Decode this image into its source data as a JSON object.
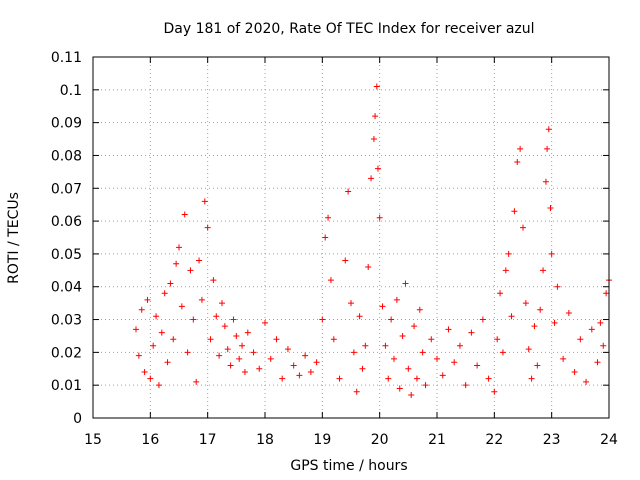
{
  "chart_data": {
    "type": "scatter",
    "title": "Day 181 of 2020, Rate Of TEC Index for receiver azul",
    "xlabel": "GPS time / hours",
    "ylabel": "ROTI / TECUs",
    "xlim": [
      15,
      24
    ],
    "ylim": [
      0,
      0.11
    ],
    "xticks": [
      15,
      16,
      17,
      18,
      19,
      20,
      21,
      22,
      23,
      24
    ],
    "yticks": [
      0,
      0.01,
      0.02,
      0.03,
      0.04,
      0.05,
      0.06,
      0.07,
      0.08,
      0.09,
      0.1,
      0.11
    ],
    "xtick_labels": [
      "15",
      "16",
      "17",
      "18",
      "19",
      "20",
      "21",
      "22",
      "23",
      "24"
    ],
    "ytick_labels": [
      "0",
      "0.01",
      "0.02",
      "0.03",
      "0.04",
      "0.05",
      "0.06",
      "0.07",
      "0.08",
      "0.09",
      "0.1",
      "0.11"
    ],
    "grid": true,
    "marker": "plus",
    "color": "#ff0000",
    "series": [
      {
        "values": [
          [
            15.75,
            0.027
          ],
          [
            15.8,
            0.019
          ],
          [
            15.85,
            0.033
          ],
          [
            15.9,
            0.014
          ],
          [
            15.95,
            0.036
          ],
          [
            16.0,
            0.012
          ],
          [
            16.05,
            0.022
          ],
          [
            16.1,
            0.031
          ],
          [
            16.15,
            0.01
          ],
          [
            16.2,
            0.026
          ],
          [
            16.25,
            0.038
          ],
          [
            16.3,
            0.017
          ],
          [
            16.35,
            0.041
          ],
          [
            16.4,
            0.024
          ],
          [
            16.45,
            0.047
          ],
          [
            16.5,
            0.052
          ],
          [
            16.55,
            0.034
          ],
          [
            16.6,
            0.062
          ],
          [
            16.65,
            0.02
          ],
          [
            16.7,
            0.045
          ],
          [
            16.75,
            0.03
          ],
          [
            16.8,
            0.011
          ],
          [
            16.85,
            0.048
          ],
          [
            16.9,
            0.036
          ],
          [
            16.95,
            0.066
          ],
          [
            17.0,
            0.058
          ],
          [
            17.05,
            0.024
          ],
          [
            17.1,
            0.042
          ],
          [
            17.15,
            0.031
          ],
          [
            17.2,
            0.019
          ],
          [
            17.25,
            0.035
          ],
          [
            17.3,
            0.028
          ],
          [
            17.35,
            0.021
          ],
          [
            17.4,
            0.016
          ],
          [
            17.45,
            0.03
          ],
          [
            17.5,
            0.025
          ],
          [
            17.55,
            0.018
          ],
          [
            17.6,
            0.022
          ],
          [
            17.65,
            0.014
          ],
          [
            17.7,
            0.026
          ],
          [
            17.8,
            0.02
          ],
          [
            17.9,
            0.015
          ],
          [
            18.0,
            0.029
          ],
          [
            18.1,
            0.018
          ],
          [
            18.2,
            0.024
          ],
          [
            18.3,
            0.012
          ],
          [
            18.4,
            0.021
          ],
          [
            18.5,
            0.016
          ],
          [
            18.6,
            0.013
          ],
          [
            18.7,
            0.019
          ],
          [
            18.8,
            0.014
          ],
          [
            18.9,
            0.017
          ],
          [
            19.0,
            0.03
          ],
          [
            19.05,
            0.055
          ],
          [
            19.1,
            0.061
          ],
          [
            19.15,
            0.042
          ],
          [
            19.2,
            0.024
          ],
          [
            19.3,
            0.012
          ],
          [
            19.4,
            0.048
          ],
          [
            19.45,
            0.069
          ],
          [
            19.5,
            0.035
          ],
          [
            19.55,
            0.02
          ],
          [
            19.6,
            0.008
          ],
          [
            19.65,
            0.031
          ],
          [
            19.7,
            0.015
          ],
          [
            19.75,
            0.022
          ],
          [
            19.8,
            0.046
          ],
          [
            19.85,
            0.073
          ],
          [
            19.9,
            0.085
          ],
          [
            19.92,
            0.092
          ],
          [
            19.95,
            0.101
          ],
          [
            19.97,
            0.076
          ],
          [
            20.0,
            0.061
          ],
          [
            20.05,
            0.034
          ],
          [
            20.1,
            0.022
          ],
          [
            20.15,
            0.012
          ],
          [
            20.2,
            0.03
          ],
          [
            20.25,
            0.018
          ],
          [
            20.3,
            0.036
          ],
          [
            20.35,
            0.009
          ],
          [
            20.4,
            0.025
          ],
          [
            20.45,
            0.041
          ],
          [
            20.5,
            0.015
          ],
          [
            20.55,
            0.007
          ],
          [
            20.6,
            0.028
          ],
          [
            20.65,
            0.012
          ],
          [
            20.7,
            0.033
          ],
          [
            20.75,
            0.02
          ],
          [
            20.8,
            0.01
          ],
          [
            20.9,
            0.024
          ],
          [
            21.0,
            0.018
          ],
          [
            21.1,
            0.013
          ],
          [
            21.2,
            0.027
          ],
          [
            21.3,
            0.017
          ],
          [
            21.4,
            0.022
          ],
          [
            21.5,
            0.01
          ],
          [
            21.6,
            0.026
          ],
          [
            21.7,
            0.016
          ],
          [
            21.8,
            0.03
          ],
          [
            21.9,
            0.012
          ],
          [
            22.0,
            0.008
          ],
          [
            22.05,
            0.024
          ],
          [
            22.1,
            0.038
          ],
          [
            22.15,
            0.02
          ],
          [
            22.2,
            0.045
          ],
          [
            22.25,
            0.05
          ],
          [
            22.3,
            0.031
          ],
          [
            22.35,
            0.063
          ],
          [
            22.4,
            0.078
          ],
          [
            22.45,
            0.082
          ],
          [
            22.5,
            0.058
          ],
          [
            22.55,
            0.035
          ],
          [
            22.6,
            0.021
          ],
          [
            22.65,
            0.012
          ],
          [
            22.7,
            0.028
          ],
          [
            22.75,
            0.016
          ],
          [
            22.8,
            0.033
          ],
          [
            22.85,
            0.045
          ],
          [
            22.9,
            0.072
          ],
          [
            22.92,
            0.082
          ],
          [
            22.95,
            0.088
          ],
          [
            22.98,
            0.064
          ],
          [
            23.0,
            0.05
          ],
          [
            23.05,
            0.029
          ],
          [
            23.1,
            0.04
          ],
          [
            23.2,
            0.018
          ],
          [
            23.3,
            0.032
          ],
          [
            23.4,
            0.014
          ],
          [
            23.5,
            0.024
          ],
          [
            23.6,
            0.011
          ],
          [
            23.7,
            0.027
          ],
          [
            23.8,
            0.017
          ],
          [
            23.85,
            0.029
          ],
          [
            23.9,
            0.022
          ],
          [
            23.95,
            0.038
          ],
          [
            24.0,
            0.042
          ]
        ]
      }
    ]
  }
}
